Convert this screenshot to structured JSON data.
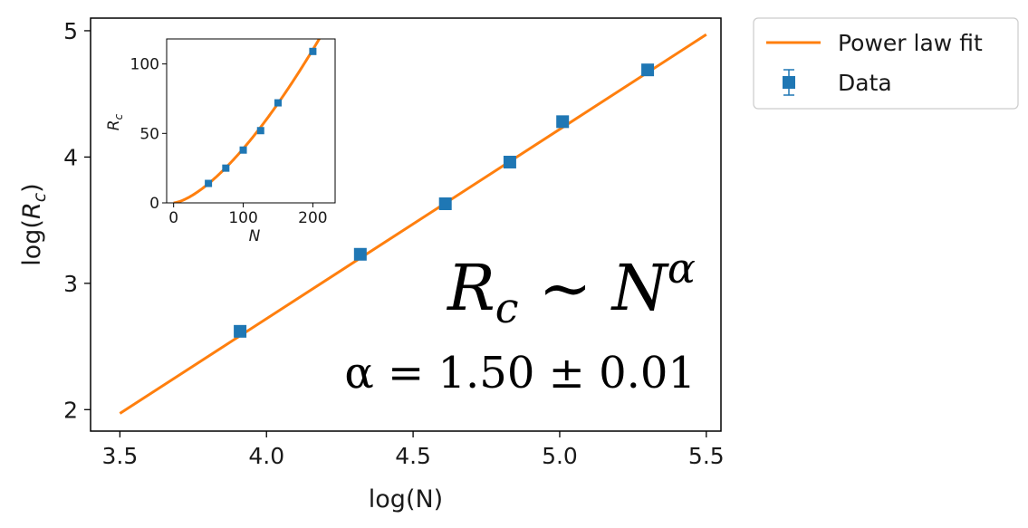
{
  "chart_data": [
    {
      "type": "line",
      "role": "main",
      "xlabel": "log(N)",
      "ylabel_parts": [
        "log(",
        "R",
        "c",
        ")"
      ],
      "xlim": [
        3.4,
        5.55
      ],
      "ylim": [
        1.83,
        5.1
      ],
      "x_ticks": [
        3.5,
        4.0,
        4.5,
        5.0,
        5.5
      ],
      "x_tick_labels": [
        "3.5",
        "4.0",
        "4.5",
        "5.0",
        "5.5"
      ],
      "y_ticks": [
        2,
        3,
        4,
        5
      ],
      "y_tick_labels": [
        "2",
        "3",
        "4",
        "5"
      ],
      "grid": false,
      "series": [
        {
          "name": "Power law fit",
          "kind": "line",
          "color": "#ff7f0e",
          "x": [
            3.5,
            5.5
          ],
          "y": [
            1.97,
            4.97
          ]
        },
        {
          "name": "Data",
          "kind": "scatter",
          "marker": "square",
          "color": "#1f77b4",
          "x": [
            3.91,
            4.32,
            4.61,
            4.83,
            5.01,
            5.3
          ],
          "y": [
            2.62,
            3.23,
            3.63,
            3.96,
            4.28,
            4.69
          ]
        }
      ],
      "annotations": {
        "relation": {
          "lhs": "R",
          "lhs_sub": "c",
          "op": "~",
          "rhs": "N",
          "rhs_sup": "α"
        },
        "exponent": "α = 1.50 ± 0.01"
      },
      "legend": {
        "placement": "outside-top-right",
        "entries": [
          "Power law fit",
          "Data"
        ]
      }
    },
    {
      "type": "line",
      "role": "inset",
      "xlabel": "N",
      "ylabel_parts": [
        "R",
        "c"
      ],
      "xlim": [
        -10,
        232
      ],
      "ylim": [
        0,
        118
      ],
      "x_ticks": [
        0,
        100,
        200
      ],
      "x_tick_labels": [
        "0",
        "100",
        "200"
      ],
      "y_ticks": [
        0,
        50,
        100
      ],
      "y_tick_labels": [
        "0",
        "50",
        "100"
      ],
      "grid": false,
      "series": [
        {
          "name": "Power law fit",
          "kind": "line",
          "color": "#ff7f0e",
          "curve": {
            "form": "power",
            "coefficient": 0.039,
            "exponent": 1.5,
            "x_from": 0,
            "x_to": 215
          }
        },
        {
          "name": "Data",
          "kind": "scatter",
          "marker": "square",
          "color": "#1f77b4",
          "x": [
            50,
            75,
            100,
            125,
            150,
            200
          ],
          "y": [
            14,
            25,
            38,
            52,
            72,
            109
          ]
        }
      ]
    }
  ]
}
